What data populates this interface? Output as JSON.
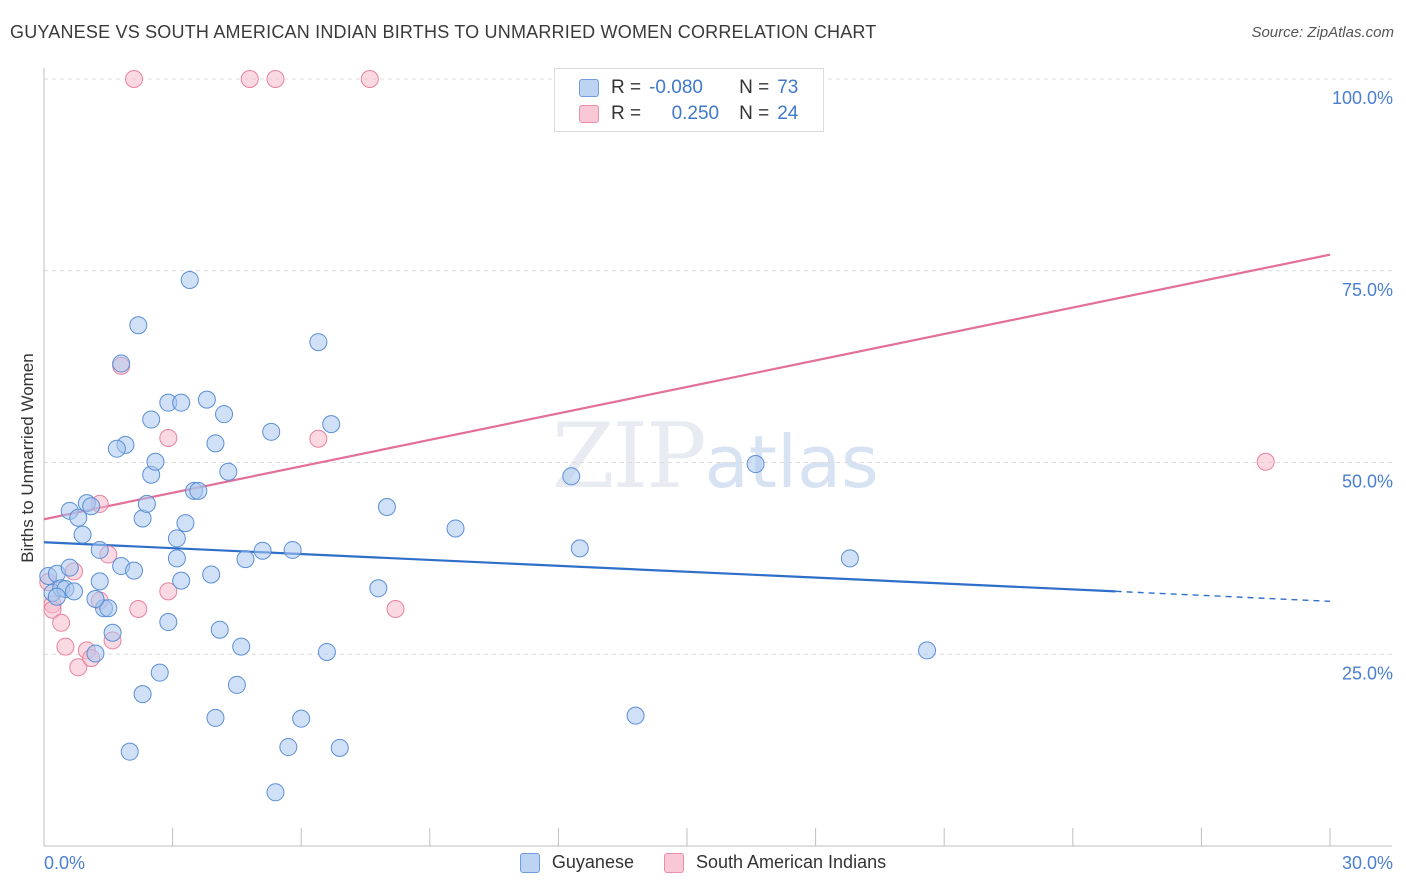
{
  "header": {
    "title": "GUYANESE VS SOUTH AMERICAN INDIAN BIRTHS TO UNMARRIED WOMEN CORRELATION CHART",
    "source": "Source: ZipAtlas.com"
  },
  "watermark": {
    "zip": "ZIP",
    "atlas": "atlas"
  },
  "legend": {
    "rows": [
      {
        "r_label": "R =",
        "r_value": "-0.080",
        "n_label": "N =",
        "n_value": "73"
      },
      {
        "r_label": "R =",
        "r_value": "0.250",
        "n_label": "N =",
        "n_value": "24"
      }
    ]
  },
  "colors": {
    "blue_fill": "#a9c7ee",
    "blue_stroke": "#5b8fd6",
    "blue_line": "#2f6fc9",
    "pink_fill": "#f5b9cb",
    "pink_stroke": "#e7839f",
    "pink_line": "#e2709a",
    "tick_color": "#4a7fcf"
  },
  "chart_data": {
    "type": "scatter",
    "title": "GUYANESE VS SOUTH AMERICAN INDIAN BIRTHS TO UNMARRIED WOMEN CORRELATION CHART",
    "xlabel": "",
    "ylabel": "Births to Unmarried Women",
    "xlim": [
      0,
      30
    ],
    "ylim": [
      0,
      100
    ],
    "x_tick_labels": [
      "0.0%",
      "30.0%"
    ],
    "y_ticks": [
      25,
      50,
      75,
      100
    ],
    "y_tick_labels": [
      "25.0%",
      "50.0%",
      "75.0%",
      "100.0%"
    ],
    "series": [
      {
        "name": "Guyanese",
        "r": -0.08,
        "n": 73,
        "trend": {
          "x0": 0,
          "y0": 39.6,
          "x1": 25,
          "y1": 33.2,
          "dash_to_x": 30,
          "dash_to_y": 31.9
        },
        "points": [
          [
            0.1,
            35.2
          ],
          [
            0.2,
            33.0
          ],
          [
            0.3,
            35.5
          ],
          [
            0.4,
            33.6
          ],
          [
            0.5,
            33.5
          ],
          [
            0.3,
            32.5
          ],
          [
            0.6,
            36.3
          ],
          [
            0.6,
            43.7
          ],
          [
            0.8,
            42.8
          ],
          [
            0.9,
            40.6
          ],
          [
            1.0,
            44.7
          ],
          [
            1.1,
            44.3
          ],
          [
            1.3,
            38.6
          ],
          [
            1.3,
            34.5
          ],
          [
            1.4,
            31.0
          ],
          [
            1.5,
            31.0
          ],
          [
            1.2,
            32.2
          ],
          [
            0.7,
            33.2
          ],
          [
            1.6,
            27.8
          ],
          [
            1.8,
            36.5
          ],
          [
            1.9,
            52.3
          ],
          [
            1.7,
            51.8
          ],
          [
            2.1,
            35.9
          ],
          [
            2.2,
            67.9
          ],
          [
            1.8,
            62.9
          ],
          [
            2.5,
            55.6
          ],
          [
            2.5,
            48.4
          ],
          [
            2.6,
            50.1
          ],
          [
            2.3,
            42.7
          ],
          [
            2.4,
            44.6
          ],
          [
            2.9,
            57.8
          ],
          [
            3.2,
            57.8
          ],
          [
            3.3,
            42.1
          ],
          [
            3.5,
            46.3
          ],
          [
            3.6,
            46.3
          ],
          [
            3.8,
            58.2
          ],
          [
            4.0,
            52.5
          ],
          [
            4.2,
            56.3
          ],
          [
            4.3,
            48.8
          ],
          [
            3.1,
            40.1
          ],
          [
            3.1,
            37.5
          ],
          [
            3.2,
            34.6
          ],
          [
            3.9,
            35.4
          ],
          [
            2.9,
            29.2
          ],
          [
            4.1,
            28.2
          ],
          [
            4.6,
            26.0
          ],
          [
            4.7,
            37.4
          ],
          [
            5.1,
            38.5
          ],
          [
            5.3,
            54.0
          ],
          [
            5.8,
            38.6
          ],
          [
            3.4,
            73.8
          ],
          [
            6.4,
            65.7
          ],
          [
            6.7,
            55.0
          ],
          [
            8.0,
            44.2
          ],
          [
            7.8,
            33.6
          ],
          [
            9.6,
            41.4
          ],
          [
            12.3,
            48.2
          ],
          [
            12.5,
            38.8
          ],
          [
            16.6,
            49.8
          ],
          [
            18.8,
            37.5
          ],
          [
            20.6,
            25.5
          ],
          [
            2.7,
            22.6
          ],
          [
            2.3,
            19.8
          ],
          [
            4.5,
            21.0
          ],
          [
            4.0,
            16.7
          ],
          [
            5.7,
            12.9
          ],
          [
            6.0,
            16.6
          ],
          [
            6.9,
            12.8
          ],
          [
            2.0,
            12.3
          ],
          [
            5.4,
            7.0
          ],
          [
            6.6,
            25.3
          ],
          [
            13.8,
            17.0
          ],
          [
            1.2,
            25.1
          ]
        ]
      },
      {
        "name": "South American Indians",
        "r": 0.25,
        "n": 24,
        "trend": {
          "x0": 0,
          "y0": 42.6,
          "x1": 30,
          "y1": 77.1
        },
        "points": [
          [
            0.1,
            34.4
          ],
          [
            0.2,
            31.5
          ],
          [
            0.2,
            30.8
          ],
          [
            0.4,
            29.1
          ],
          [
            0.5,
            26.0
          ],
          [
            0.7,
            35.8
          ],
          [
            0.8,
            23.3
          ],
          [
            1.0,
            25.5
          ],
          [
            1.1,
            24.5
          ],
          [
            1.3,
            32.0
          ],
          [
            1.3,
            44.6
          ],
          [
            1.5,
            38.0
          ],
          [
            1.6,
            26.8
          ],
          [
            1.8,
            62.6
          ],
          [
            2.2,
            30.9
          ],
          [
            2.9,
            53.2
          ],
          [
            2.9,
            33.2
          ],
          [
            6.4,
            53.1
          ],
          [
            8.2,
            30.9
          ],
          [
            2.1,
            100
          ],
          [
            4.8,
            100
          ],
          [
            5.4,
            100
          ],
          [
            7.6,
            100
          ],
          [
            28.5,
            50.1
          ]
        ]
      }
    ]
  }
}
